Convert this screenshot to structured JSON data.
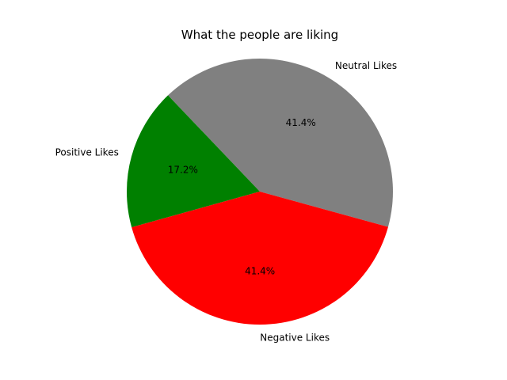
{
  "chart_data": {
    "type": "pie",
    "title": "What the people are liking",
    "labels": [
      "Neutral Likes",
      "Positive Likes",
      "Negative Likes"
    ],
    "values": [
      41.4,
      17.2,
      41.4
    ],
    "percent_labels": [
      "41.4%",
      "17.2%",
      "41.4%"
    ],
    "colors": [
      "#808080",
      "#008000",
      "#ff0000"
    ],
    "start_angle_deg": -15.4,
    "legend": "none"
  }
}
